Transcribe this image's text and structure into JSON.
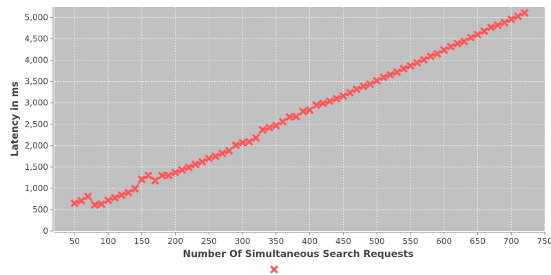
{
  "chart_data": {
    "type": "line",
    "title": "",
    "xlabel": "Number Of Simultaneous Search Requests",
    "ylabel": "Latency in ms",
    "xlim": [
      20,
      750
    ],
    "ylim": [
      0,
      5250
    ],
    "xticks": [
      50,
      100,
      150,
      200,
      250,
      300,
      350,
      400,
      450,
      500,
      550,
      600,
      650,
      700,
      750
    ],
    "xtick_labels": [
      "50",
      "100",
      "150",
      "200",
      "250",
      "300",
      "350",
      "400",
      "450",
      "500",
      "550",
      "600",
      "650",
      "700",
      "750"
    ],
    "yticks": [
      0,
      500,
      1000,
      1500,
      2000,
      2500,
      3000,
      3500,
      4000,
      4500,
      5000
    ],
    "ytick_labels": [
      "0",
      "500",
      "1,000",
      "1,500",
      "2,000",
      "2,500",
      "3,000",
      "3,500",
      "4,000",
      "4,500",
      "5,000"
    ],
    "grid": true,
    "legend_position": "bottom",
    "colors": {
      "plot_background": "#c0c0c0",
      "grid": "#ffffff",
      "series": "#ff5555",
      "axis": "#888888"
    },
    "series": [
      {
        "marker": "x-cross",
        "points": [
          [
            50,
            650
          ],
          [
            60,
            710
          ],
          [
            70,
            810
          ],
          [
            80,
            610
          ],
          [
            90,
            630
          ],
          [
            100,
            720
          ],
          [
            110,
            780
          ],
          [
            120,
            840
          ],
          [
            130,
            900
          ],
          [
            140,
            990
          ],
          [
            150,
            1210
          ],
          [
            160,
            1300
          ],
          [
            170,
            1180
          ],
          [
            180,
            1300
          ],
          [
            190,
            1300
          ],
          [
            200,
            1370
          ],
          [
            210,
            1430
          ],
          [
            220,
            1490
          ],
          [
            230,
            1560
          ],
          [
            240,
            1620
          ],
          [
            250,
            1700
          ],
          [
            260,
            1750
          ],
          [
            270,
            1820
          ],
          [
            280,
            1880
          ],
          [
            290,
            2010
          ],
          [
            300,
            2070
          ],
          [
            310,
            2090
          ],
          [
            320,
            2180
          ],
          [
            330,
            2370
          ],
          [
            340,
            2420
          ],
          [
            350,
            2470
          ],
          [
            360,
            2560
          ],
          [
            370,
            2670
          ],
          [
            380,
            2680
          ],
          [
            390,
            2800
          ],
          [
            400,
            2830
          ],
          [
            410,
            2950
          ],
          [
            420,
            2990
          ],
          [
            430,
            3040
          ],
          [
            440,
            3100
          ],
          [
            450,
            3160
          ],
          [
            460,
            3240
          ],
          [
            470,
            3320
          ],
          [
            480,
            3390
          ],
          [
            490,
            3440
          ],
          [
            500,
            3520
          ],
          [
            510,
            3600
          ],
          [
            520,
            3660
          ],
          [
            530,
            3720
          ],
          [
            540,
            3800
          ],
          [
            550,
            3870
          ],
          [
            560,
            3940
          ],
          [
            570,
            4010
          ],
          [
            580,
            4090
          ],
          [
            590,
            4150
          ],
          [
            600,
            4240
          ],
          [
            610,
            4320
          ],
          [
            620,
            4390
          ],
          [
            630,
            4440
          ],
          [
            640,
            4530
          ],
          [
            650,
            4600
          ],
          [
            660,
            4680
          ],
          [
            670,
            4770
          ],
          [
            680,
            4820
          ],
          [
            690,
            4880
          ],
          [
            700,
            4960
          ],
          [
            710,
            5030
          ],
          [
            720,
            5110
          ]
        ]
      }
    ]
  }
}
